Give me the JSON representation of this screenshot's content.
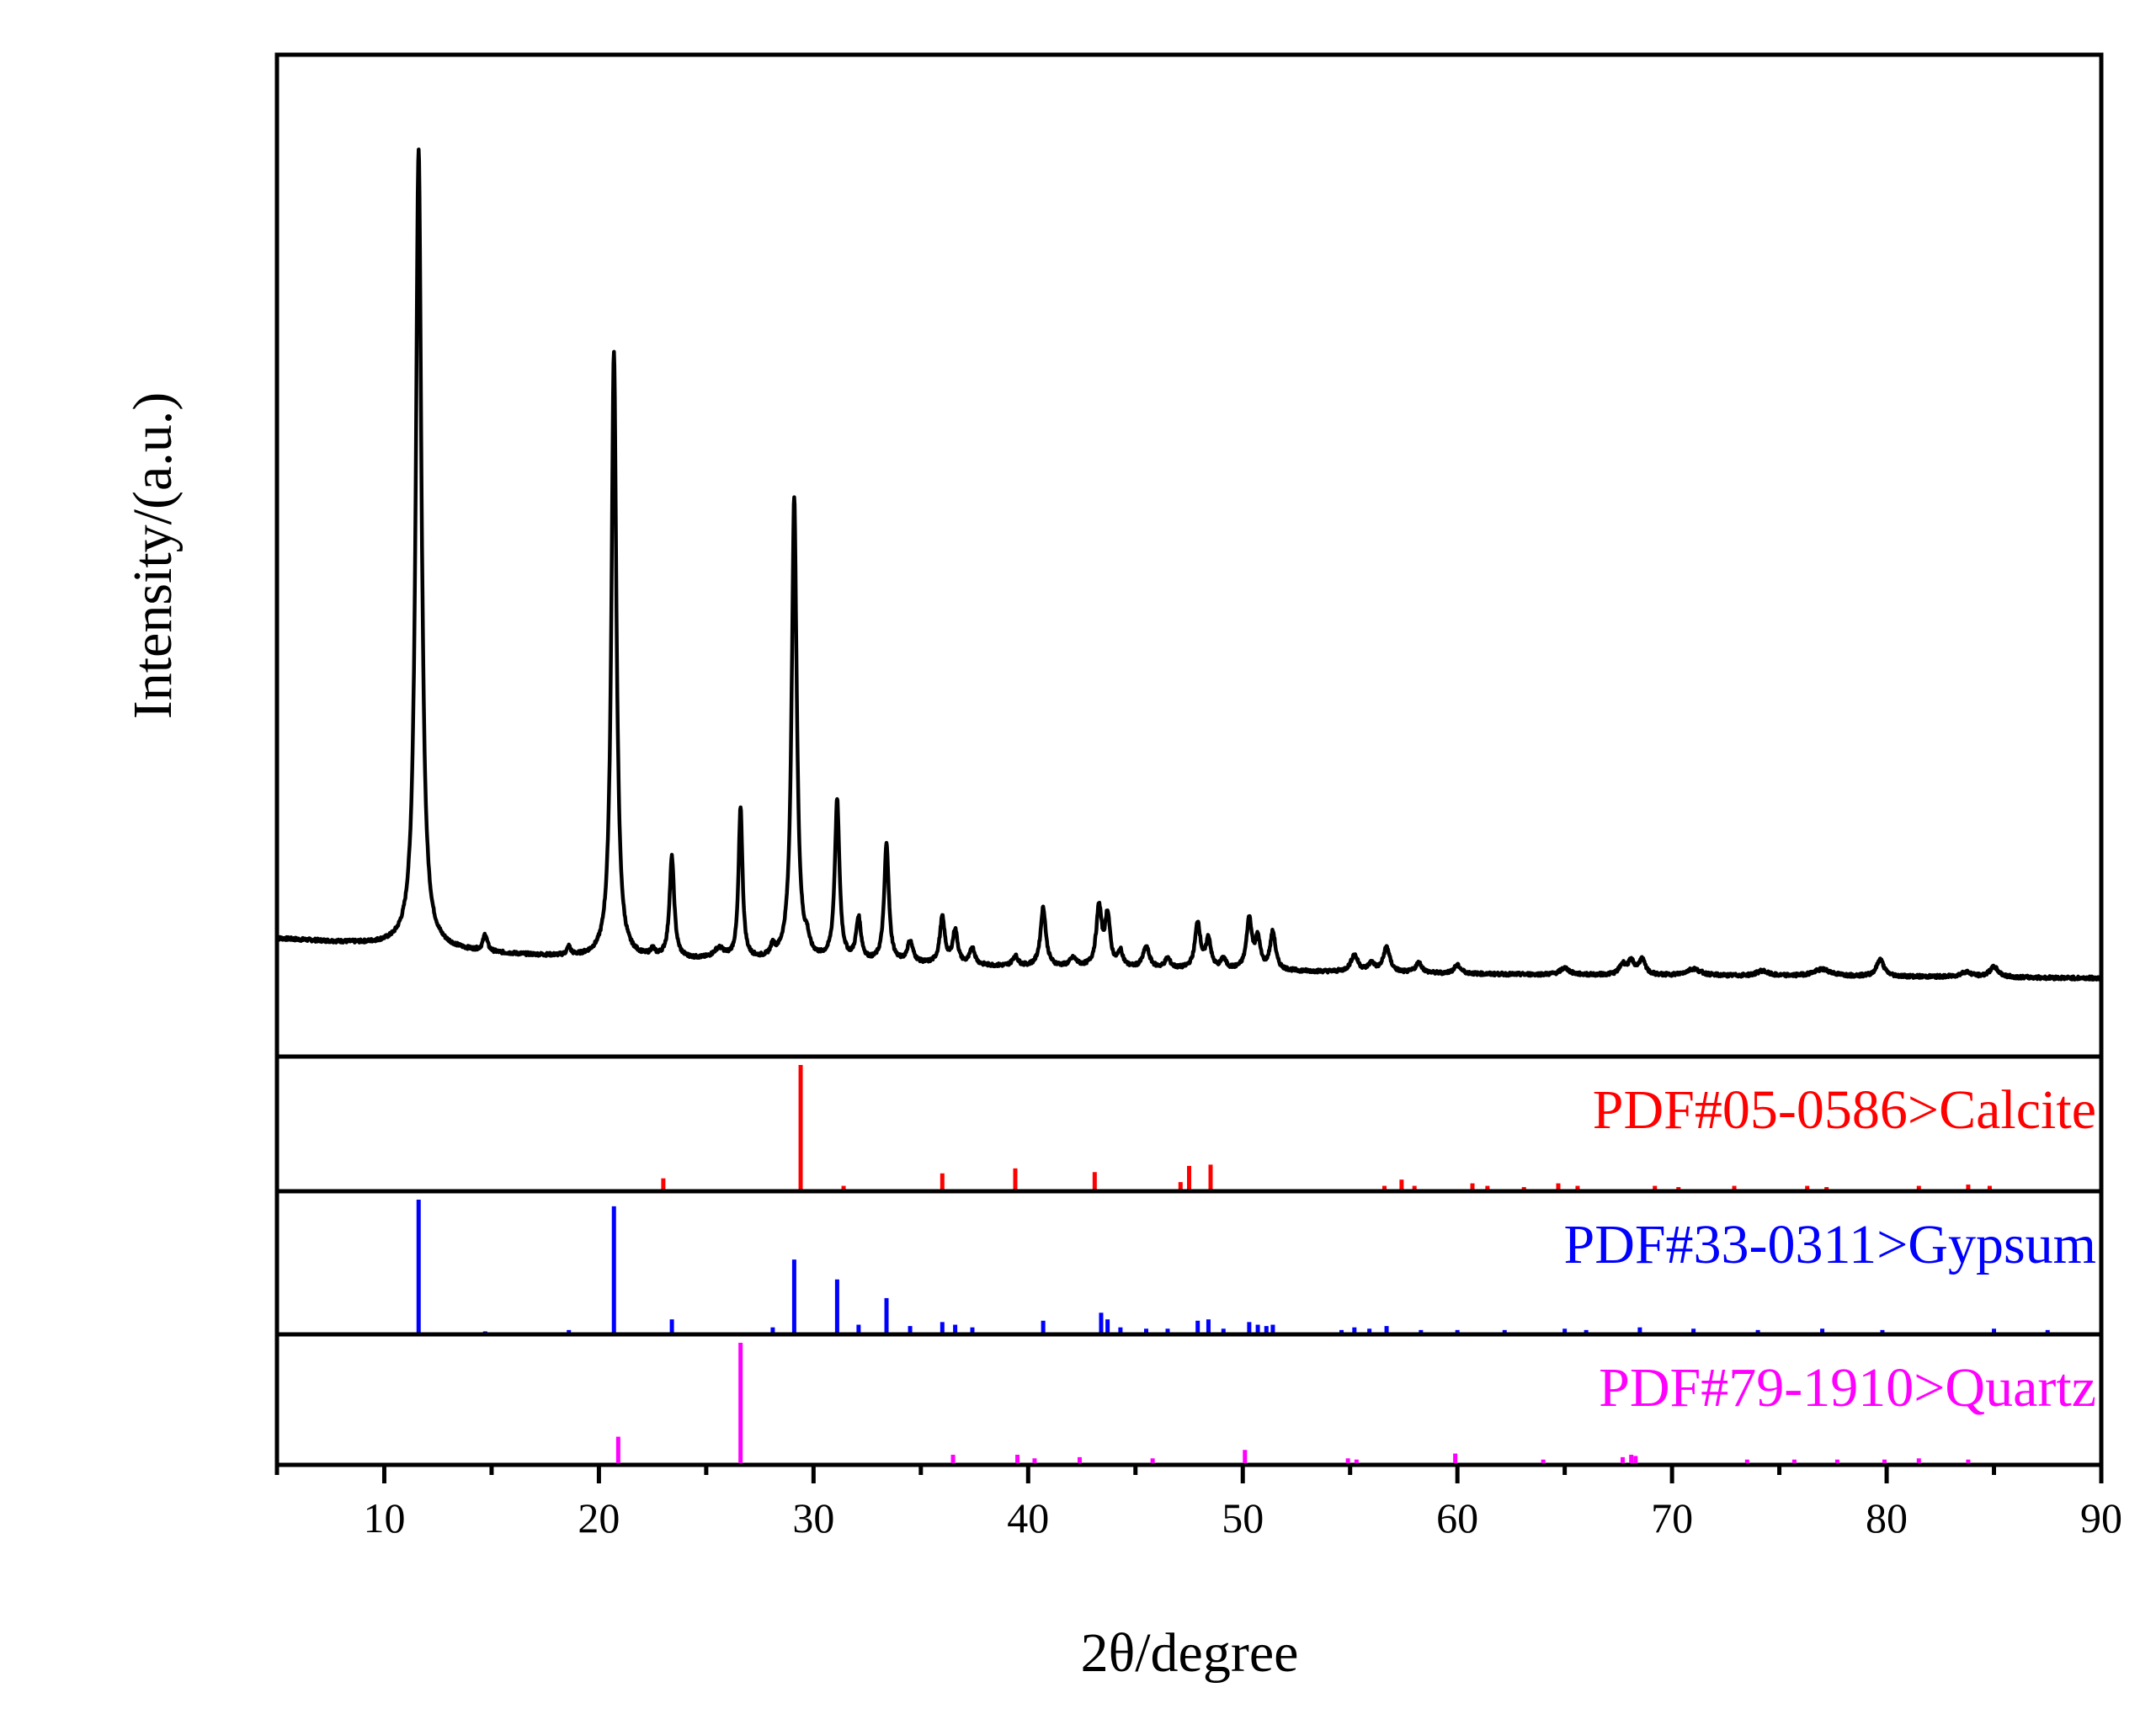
{
  "chart_data": {
    "type": "line",
    "xlabel": "2θ/degree",
    "ylabel": "Intensity/(a.u.)",
    "xlim": [
      5,
      90
    ],
    "xticks": [
      10,
      20,
      30,
      40,
      50,
      60,
      70,
      80,
      90
    ],
    "y_ticks_shown": false,
    "grid": false,
    "main_series": {
      "color": "#000000",
      "baseline": [
        [
          5,
          0.05
        ],
        [
          10,
          0.042
        ],
        [
          15,
          0.032
        ],
        [
          20,
          0.026
        ],
        [
          25,
          0.024
        ],
        [
          30,
          0.022
        ],
        [
          40,
          0.016
        ],
        [
          50,
          0.012
        ],
        [
          60,
          0.008
        ],
        [
          70,
          0.006
        ],
        [
          80,
          0.005
        ],
        [
          90,
          0.003
        ]
      ],
      "peaks": [
        [
          11.6,
          0.95,
          0.16
        ],
        [
          14.7,
          0.02,
          0.12
        ],
        [
          18.6,
          0.01,
          0.1
        ],
        [
          20.7,
          0.72,
          0.14
        ],
        [
          22.5,
          0.008,
          0.12
        ],
        [
          23.4,
          0.12,
          0.13
        ],
        [
          25.6,
          0.012,
          0.3
        ],
        [
          26.6,
          0.18,
          0.11
        ],
        [
          28.1,
          0.012,
          0.12
        ],
        [
          29.1,
          0.55,
          0.14
        ],
        [
          29.7,
          0.015,
          0.12
        ],
        [
          31.1,
          0.19,
          0.13
        ],
        [
          32.1,
          0.05,
          0.14
        ],
        [
          33.4,
          0.14,
          0.13
        ],
        [
          34.5,
          0.025,
          0.16
        ],
        [
          36.0,
          0.055,
          0.14
        ],
        [
          36.6,
          0.04,
          0.14
        ],
        [
          37.4,
          0.02,
          0.14
        ],
        [
          39.4,
          0.012,
          0.15
        ],
        [
          40.7,
          0.07,
          0.15
        ],
        [
          42.1,
          0.01,
          0.2
        ],
        [
          43.3,
          0.07,
          0.15
        ],
        [
          43.7,
          0.06,
          0.14
        ],
        [
          44.3,
          0.018,
          0.14
        ],
        [
          45.5,
          0.025,
          0.18
        ],
        [
          46.5,
          0.012,
          0.15
        ],
        [
          47.9,
          0.055,
          0.15
        ],
        [
          48.4,
          0.035,
          0.14
        ],
        [
          49.1,
          0.012,
          0.14
        ],
        [
          50.3,
          0.06,
          0.15
        ],
        [
          50.7,
          0.035,
          0.14
        ],
        [
          51.4,
          0.045,
          0.15
        ],
        [
          55.2,
          0.02,
          0.2
        ],
        [
          56.0,
          0.01,
          0.18
        ],
        [
          56.7,
          0.03,
          0.18
        ],
        [
          58.2,
          0.012,
          0.18
        ],
        [
          60.0,
          0.01,
          0.2
        ],
        [
          65.0,
          0.008,
          0.25
        ],
        [
          67.7,
          0.012,
          0.18
        ],
        [
          68.1,
          0.015,
          0.18
        ],
        [
          68.6,
          0.018,
          0.18
        ],
        [
          71.0,
          0.008,
          0.4
        ],
        [
          74.2,
          0.006,
          0.3
        ],
        [
          77.0,
          0.008,
          0.5
        ],
        [
          79.7,
          0.02,
          0.2
        ],
        [
          83.7,
          0.006,
          0.3
        ],
        [
          85.0,
          0.012,
          0.25
        ]
      ]
    },
    "reference_patterns": [
      {
        "name": "PDF#05-0586>Calcite",
        "color": "#ff0000",
        "sticks": [
          [
            23.0,
            0.09
          ],
          [
            29.4,
            1.0
          ],
          [
            31.4,
            0.03
          ],
          [
            36.0,
            0.13
          ],
          [
            39.4,
            0.17
          ],
          [
            43.1,
            0.14
          ],
          [
            47.1,
            0.06
          ],
          [
            47.5,
            0.19
          ],
          [
            48.5,
            0.2
          ],
          [
            56.6,
            0.03
          ],
          [
            57.4,
            0.08
          ],
          [
            58.0,
            0.03
          ],
          [
            60.7,
            0.05
          ],
          [
            61.4,
            0.03
          ],
          [
            63.1,
            0.02
          ],
          [
            64.7,
            0.05
          ],
          [
            65.6,
            0.03
          ],
          [
            69.2,
            0.03
          ],
          [
            70.3,
            0.02
          ],
          [
            72.9,
            0.03
          ],
          [
            76.3,
            0.03
          ],
          [
            77.2,
            0.02
          ],
          [
            81.5,
            0.03
          ],
          [
            83.8,
            0.04
          ],
          [
            84.8,
            0.03
          ]
        ]
      },
      {
        "name": "PDF#33-0311>Gypsum",
        "color": "#0000ff",
        "sticks": [
          [
            11.6,
            1.0
          ],
          [
            14.7,
            0.01
          ],
          [
            18.6,
            0.02
          ],
          [
            20.7,
            0.95
          ],
          [
            23.4,
            0.1
          ],
          [
            28.1,
            0.04
          ],
          [
            29.1,
            0.55
          ],
          [
            31.1,
            0.4
          ],
          [
            32.1,
            0.06
          ],
          [
            33.4,
            0.26
          ],
          [
            34.5,
            0.05
          ],
          [
            36.0,
            0.08
          ],
          [
            36.6,
            0.06
          ],
          [
            37.4,
            0.04
          ],
          [
            40.7,
            0.09
          ],
          [
            43.4,
            0.15
          ],
          [
            43.7,
            0.1
          ],
          [
            44.3,
            0.04
          ],
          [
            45.5,
            0.03
          ],
          [
            46.5,
            0.03
          ],
          [
            47.9,
            0.09
          ],
          [
            48.4,
            0.1
          ],
          [
            49.1,
            0.03
          ],
          [
            50.3,
            0.08
          ],
          [
            50.7,
            0.06
          ],
          [
            51.1,
            0.05
          ],
          [
            51.4,
            0.06
          ],
          [
            54.6,
            0.02
          ],
          [
            55.2,
            0.04
          ],
          [
            55.9,
            0.03
          ],
          [
            56.7,
            0.05
          ],
          [
            58.3,
            0.02
          ],
          [
            60.0,
            0.02
          ],
          [
            62.2,
            0.02
          ],
          [
            65.0,
            0.03
          ],
          [
            66.0,
            0.02
          ],
          [
            68.5,
            0.04
          ],
          [
            71.0,
            0.03
          ],
          [
            74.0,
            0.02
          ],
          [
            77.0,
            0.03
          ],
          [
            79.8,
            0.02
          ],
          [
            85.0,
            0.03
          ],
          [
            87.5,
            0.02
          ]
        ]
      },
      {
        "name": "PDF#79-1910>Quartz",
        "color": "#ff00ff",
        "sticks": [
          [
            20.9,
            0.22
          ],
          [
            26.6,
            1.0
          ],
          [
            36.5,
            0.07
          ],
          [
            39.5,
            0.07
          ],
          [
            40.3,
            0.04
          ],
          [
            42.4,
            0.05
          ],
          [
            45.8,
            0.04
          ],
          [
            50.1,
            0.11
          ],
          [
            54.9,
            0.04
          ],
          [
            55.3,
            0.03
          ],
          [
            59.9,
            0.08
          ],
          [
            64.0,
            0.03
          ],
          [
            67.7,
            0.05
          ],
          [
            68.1,
            0.07
          ],
          [
            68.3,
            0.06
          ],
          [
            73.5,
            0.03
          ],
          [
            75.7,
            0.03
          ],
          [
            77.7,
            0.03
          ],
          [
            79.9,
            0.03
          ],
          [
            81.5,
            0.04
          ],
          [
            83.8,
            0.03
          ]
        ]
      }
    ]
  }
}
